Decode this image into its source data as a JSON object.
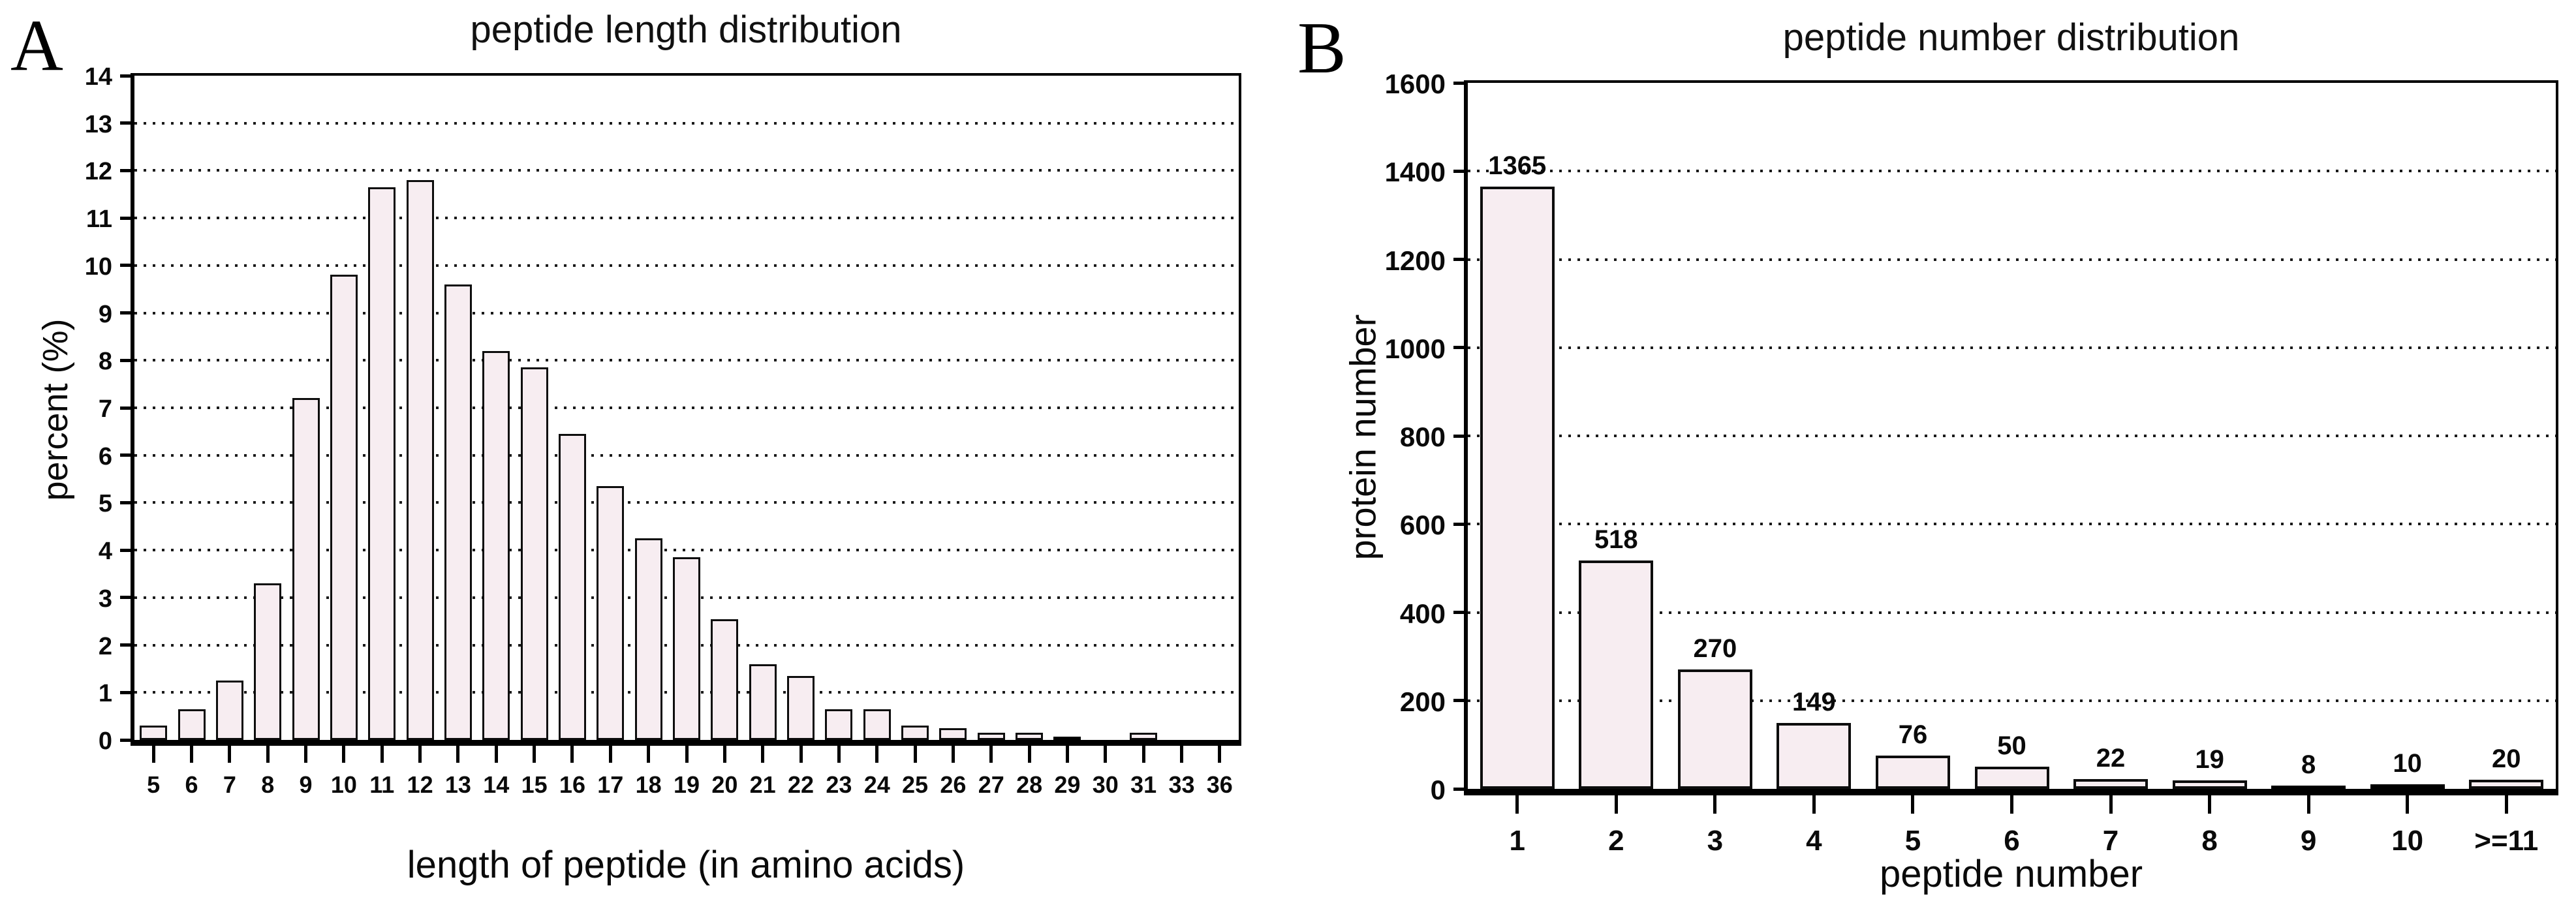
{
  "figure_caption_letters": [
    "A",
    "B"
  ],
  "chart_data": [
    {
      "panel_letter": "A",
      "type": "bar",
      "title": "peptide length distribution",
      "xlabel": "length of peptide (in amino acids)",
      "ylabel": "percent (%)",
      "categories": [
        "5",
        "6",
        "7",
        "8",
        "9",
        "10",
        "11",
        "12",
        "13",
        "14",
        "15",
        "16",
        "17",
        "18",
        "19",
        "20",
        "21",
        "22",
        "23",
        "24",
        "25",
        "26",
        "27",
        "28",
        "29",
        "30",
        "31",
        "33",
        "36"
      ],
      "values": [
        0.3,
        0.65,
        1.25,
        3.3,
        7.2,
        9.8,
        11.65,
        11.8,
        9.6,
        8.2,
        7.85,
        6.45,
        5.35,
        4.25,
        3.85,
        2.55,
        1.6,
        1.35,
        0.65,
        0.65,
        0.3,
        0.25,
        0.15,
        0.15,
        0.07,
        0,
        0.15,
        0,
        0
      ],
      "ylim": [
        0,
        14
      ],
      "ytick_step": 1,
      "grid": "horizontal-dotted",
      "legend": "none",
      "show_value_labels": false,
      "bar_fill": "#f7edf1",
      "bar_border": "#000000"
    },
    {
      "panel_letter": "B",
      "type": "bar",
      "title": "peptide number distribution",
      "xlabel": "peptide number",
      "ylabel": "protein number",
      "categories": [
        "1",
        "2",
        "3",
        "4",
        "5",
        "6",
        "7",
        "8",
        "9",
        "10",
        ">=11"
      ],
      "values": [
        1365,
        518,
        270,
        149,
        76,
        50,
        22,
        19,
        8,
        10,
        20
      ],
      "value_labels": [
        "1365",
        "518",
        "270",
        "149",
        "76",
        "50",
        "22",
        "19",
        "8",
        "10",
        "20"
      ],
      "ylim": [
        0,
        1600
      ],
      "ytick_step": 200,
      "grid": "horizontal-dotted",
      "legend": "none",
      "show_value_labels": true,
      "bar_fill": "#f7edf1",
      "bar_border": "#000000"
    }
  ]
}
